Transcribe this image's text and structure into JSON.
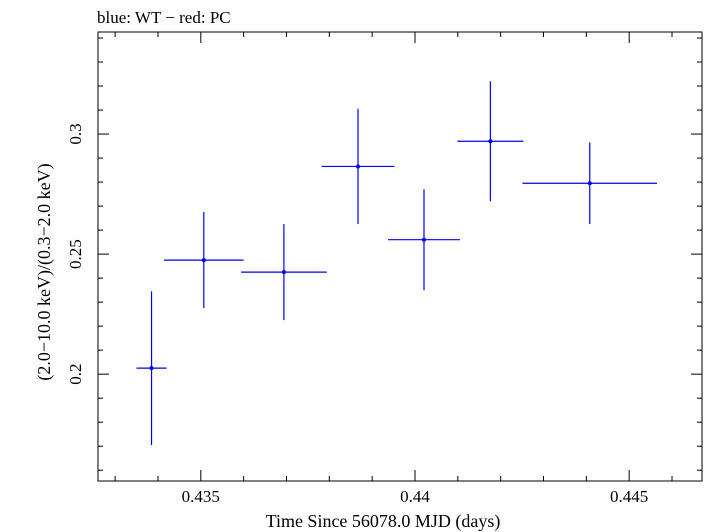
{
  "chart_data": {
    "type": "scatter",
    "title": "blue: WT − red: PC",
    "xlabel": "Time Since 56078.0 MJD (days)",
    "ylabel": "(2.0−10.0 keV)/(0.3−2.0 keV)",
    "xlim": [
      0.4326,
      0.4467
    ],
    "ylim": [
      0.1555,
      0.3425
    ],
    "x_ticks": [
      0.435,
      0.44,
      0.445
    ],
    "x_tick_labels": [
      "0.435",
      "0.44",
      "0.445"
    ],
    "y_ticks": [
      0.2,
      0.25,
      0.3
    ],
    "y_tick_labels": [
      "0.2",
      "0.25",
      "0.3"
    ],
    "x_minor_step": 0.001,
    "y_minor_step": 0.01,
    "grid": false,
    "series": [
      {
        "name": "WT",
        "color": "#0000ee",
        "points": [
          {
            "x": 0.43385,
            "xerr": 0.00035,
            "y": 0.2025,
            "yerr_lo": 0.032,
            "yerr_hi": 0.032
          },
          {
            "x": 0.43507,
            "xerr": 0.00093,
            "y": 0.2475,
            "yerr_lo": 0.02,
            "yerr_hi": 0.02
          },
          {
            "x": 0.43694,
            "xerr": 0.001,
            "y": 0.2425,
            "yerr_lo": 0.02,
            "yerr_hi": 0.02
          },
          {
            "x": 0.43867,
            "xerr": 0.00085,
            "y": 0.2865,
            "yerr_lo": 0.024,
            "yerr_hi": 0.024
          },
          {
            "x": 0.44021,
            "xerr": 0.00084,
            "y": 0.256,
            "yerr_lo": 0.021,
            "yerr_hi": 0.021
          },
          {
            "x": 0.44176,
            "xerr": 0.00077,
            "y": 0.297,
            "yerr_lo": 0.025,
            "yerr_hi": 0.025
          },
          {
            "x": 0.44408,
            "xerr": 0.00157,
            "y": 0.2795,
            "yerr_lo": 0.017,
            "yerr_hi": 0.017
          }
        ]
      }
    ]
  }
}
